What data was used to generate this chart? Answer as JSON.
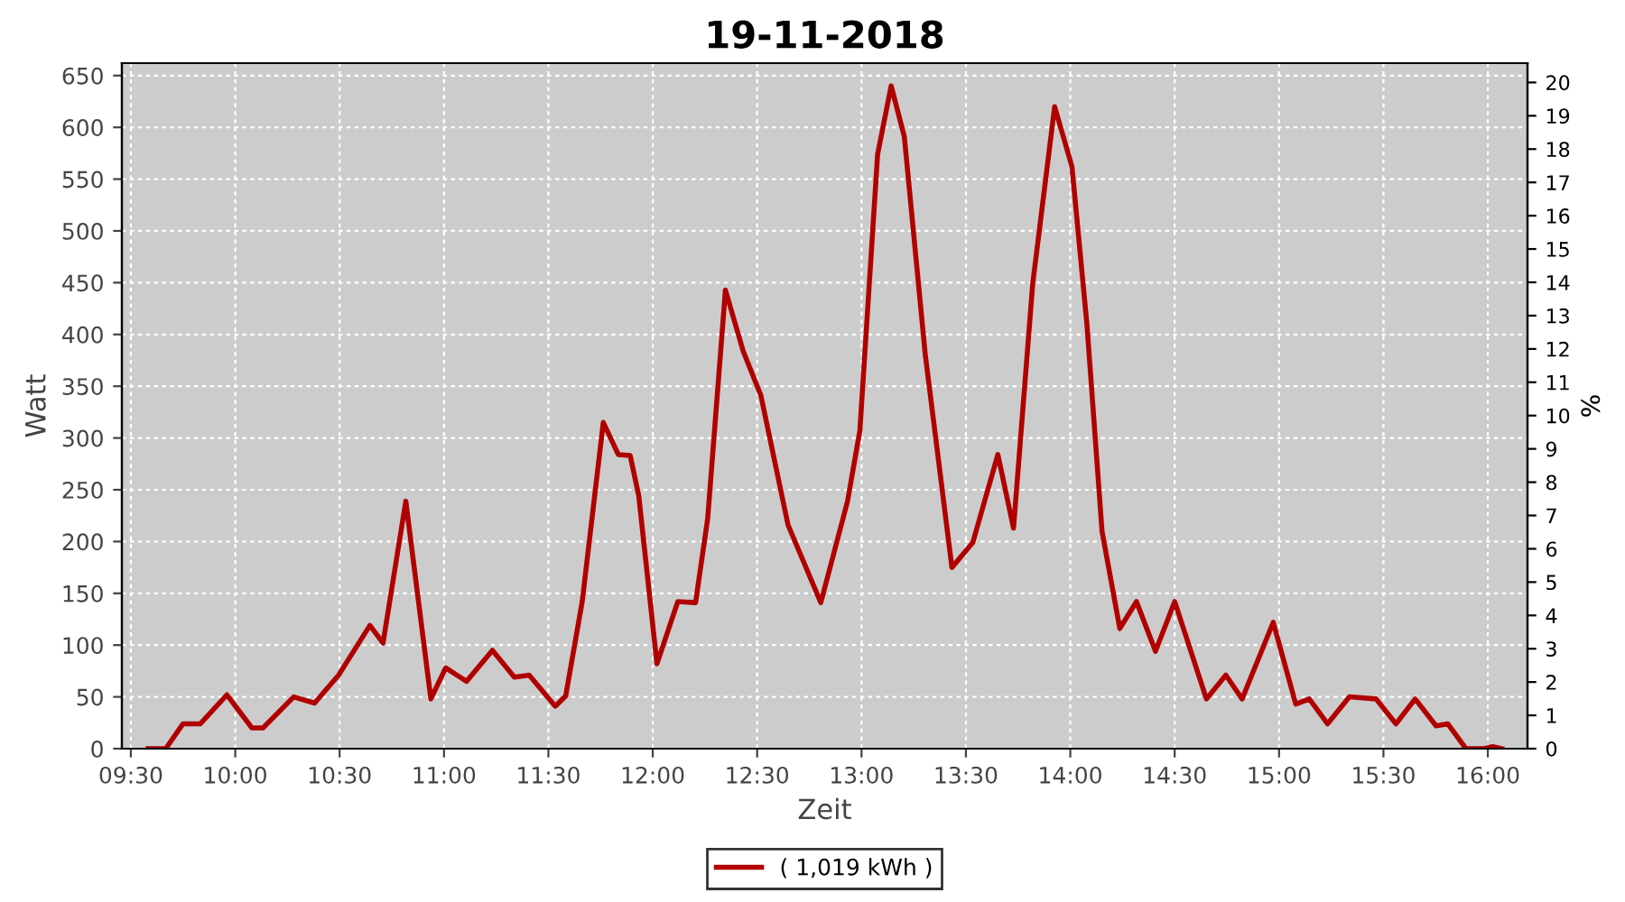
{
  "chart_data": {
    "type": "line",
    "title": "19-11-2018",
    "xlabel": "Zeit",
    "ylabel": "Watt",
    "y2label": "%",
    "xlim": [
      9.457,
      16.19
    ],
    "ylim": [
      0,
      662
    ],
    "y2lim": [
      0,
      20.58
    ],
    "xticks": [
      {
        "value": 9.5,
        "label": "09:30"
      },
      {
        "value": 10,
        "label": "10:00"
      },
      {
        "value": 10.5,
        "label": "10:30"
      },
      {
        "value": 11,
        "label": "11:00"
      },
      {
        "value": 11.5,
        "label": "11:30"
      },
      {
        "value": 12,
        "label": "12:00"
      },
      {
        "value": 12.5,
        "label": "12:30"
      },
      {
        "value": 13,
        "label": "13:00"
      },
      {
        "value": 13.5,
        "label": "13:30"
      },
      {
        "value": 14,
        "label": "14:00"
      },
      {
        "value": 14.5,
        "label": "14:30"
      },
      {
        "value": 15,
        "label": "15:00"
      },
      {
        "value": 15.5,
        "label": "15:30"
      },
      {
        "value": 16,
        "label": "16:00"
      }
    ],
    "yticks": [
      0,
      50,
      100,
      150,
      200,
      250,
      300,
      350,
      400,
      450,
      500,
      550,
      600,
      650
    ],
    "y2ticks": [
      0,
      1,
      2,
      3,
      4,
      5,
      6,
      7,
      8,
      9,
      10,
      11,
      12,
      13,
      14,
      15,
      16,
      17,
      18,
      19,
      20
    ],
    "grid": true,
    "legend": "bottom",
    "marker": "none",
    "line_style": "solid",
    "series": [
      {
        "name": "( 1,019 kWh )",
        "color": "#b00000",
        "x": [
          9.583,
          9.667,
          9.75,
          9.833,
          9.96,
          10.08,
          10.133,
          10.28,
          10.38,
          10.495,
          10.645,
          10.708,
          10.817,
          10.937,
          11.008,
          11.108,
          11.232,
          11.337,
          11.408,
          11.533,
          11.583,
          11.662,
          11.763,
          11.835,
          11.892,
          11.933,
          12.02,
          12.12,
          12.205,
          12.263,
          12.348,
          12.433,
          12.518,
          12.648,
          12.805,
          12.933,
          12.992,
          13.077,
          13.142,
          13.205,
          13.305,
          13.433,
          13.533,
          13.653,
          13.728,
          13.82,
          13.925,
          14.008,
          14.08,
          14.152,
          14.237,
          14.317,
          14.408,
          14.5,
          14.652,
          14.745,
          14.823,
          14.972,
          15.08,
          15.145,
          15.232,
          15.337,
          15.465,
          15.56,
          15.652,
          15.752,
          15.808,
          15.895,
          15.982,
          16.023,
          16.067
        ],
        "values": [
          0,
          0,
          24,
          24,
          52,
          20,
          20,
          50,
          44,
          71,
          119,
          102,
          239,
          48,
          78,
          65,
          95,
          69,
          71,
          41,
          51,
          142,
          315,
          284,
          283,
          244,
          82,
          142,
          141,
          222,
          443,
          384,
          341,
          216,
          141,
          239,
          307,
          574,
          640,
          591,
          381,
          175,
          199,
          284,
          213,
          449,
          620,
          562,
          409,
          210,
          116,
          142,
          94,
          142,
          48,
          71,
          48,
          122,
          43,
          48,
          24,
          50,
          48,
          24,
          48,
          22,
          24,
          0,
          0,
          2,
          0
        ]
      }
    ]
  }
}
